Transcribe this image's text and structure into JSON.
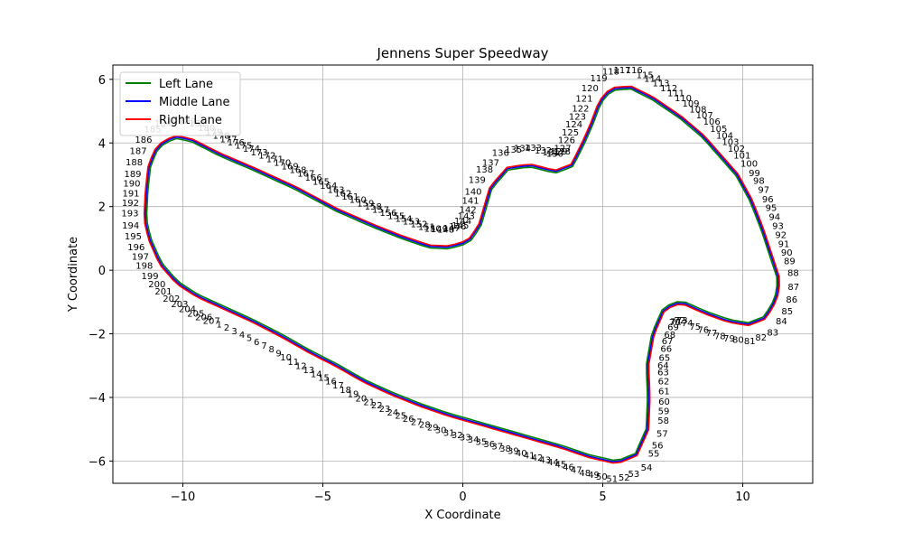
{
  "chart_data": {
    "type": "line",
    "title": "Jennens Super Speedway",
    "xlabel": "X Coordinate",
    "ylabel": "Y Coordinate",
    "xlim": [
      -12.5,
      12.5
    ],
    "ylim": [
      -6.7,
      6.45
    ],
    "xticks": [
      -10,
      -5,
      0,
      5,
      10
    ],
    "yticks": [
      -6,
      -4,
      -2,
      0,
      2,
      4,
      6
    ],
    "grid": true,
    "legend_position": "top-left",
    "colors": {
      "Left Lane": "#008000",
      "Middle Lane": "#0000ff",
      "Right Lane": "#ff0000",
      "grid": "#b0b0b0"
    },
    "legend": [
      "Left Lane",
      "Middle Lane",
      "Right Lane"
    ],
    "point_labels": {
      "from": 1,
      "to": 207
    },
    "centerline": [
      [
        -8.5,
        -1.2
      ],
      [
        -7.5,
        -1.6
      ],
      [
        -6.5,
        -2.05
      ],
      [
        -5.5,
        -2.55
      ],
      [
        -4.5,
        -3.0
      ],
      [
        -3.5,
        -3.5
      ],
      [
        -2.5,
        -3.9
      ],
      [
        -1.5,
        -4.25
      ],
      [
        -0.5,
        -4.55
      ],
      [
        0.5,
        -4.8
      ],
      [
        1.5,
        -5.05
      ],
      [
        2.5,
        -5.3
      ],
      [
        3.5,
        -5.55
      ],
      [
        4.5,
        -5.85
      ],
      [
        5.5,
        -6.05
      ],
      [
        6.2,
        -5.8
      ],
      [
        6.6,
        -5.0
      ],
      [
        6.65,
        -4.0
      ],
      [
        6.6,
        -3.0
      ],
      [
        6.8,
        -2.0
      ],
      [
        7.2,
        -1.2
      ],
      [
        7.8,
        -1.0
      ],
      [
        8.7,
        -1.35
      ],
      [
        9.5,
        -1.6
      ],
      [
        10.2,
        -1.7
      ],
      [
        10.8,
        -1.5
      ],
      [
        11.2,
        -0.9
      ],
      [
        11.3,
        -0.3
      ],
      [
        11.0,
        0.5
      ],
      [
        10.7,
        1.3
      ],
      [
        10.3,
        2.2
      ],
      [
        9.8,
        3.0
      ],
      [
        9.2,
        3.6
      ],
      [
        8.6,
        4.2
      ],
      [
        7.8,
        4.8
      ],
      [
        6.8,
        5.4
      ],
      [
        6.0,
        5.75
      ],
      [
        5.3,
        5.7
      ],
      [
        4.9,
        5.3
      ],
      [
        4.6,
        4.6
      ],
      [
        4.3,
        4.0
      ],
      [
        3.9,
        3.3
      ],
      [
        3.3,
        3.1
      ],
      [
        2.4,
        3.3
      ],
      [
        1.6,
        3.2
      ],
      [
        1.0,
        2.6
      ],
      [
        0.8,
        2.0
      ],
      [
        0.6,
        1.4
      ],
      [
        0.2,
        0.9
      ],
      [
        -0.5,
        0.72
      ],
      [
        -1.2,
        0.75
      ],
      [
        -2.2,
        1.05
      ],
      [
        -3.2,
        1.4
      ],
      [
        -4.5,
        1.9
      ],
      [
        -6.0,
        2.6
      ],
      [
        -7.5,
        3.2
      ],
      [
        -8.7,
        3.65
      ],
      [
        -9.7,
        4.1
      ],
      [
        -10.3,
        4.2
      ],
      [
        -10.9,
        3.9
      ],
      [
        -11.2,
        3.3
      ],
      [
        -11.3,
        2.5
      ],
      [
        -11.35,
        1.6
      ],
      [
        -11.2,
        1.0
      ],
      [
        -10.8,
        0.2
      ],
      [
        -10.2,
        -0.4
      ],
      [
        -9.5,
        -0.8
      ],
      [
        -8.5,
        -1.2
      ]
    ]
  }
}
